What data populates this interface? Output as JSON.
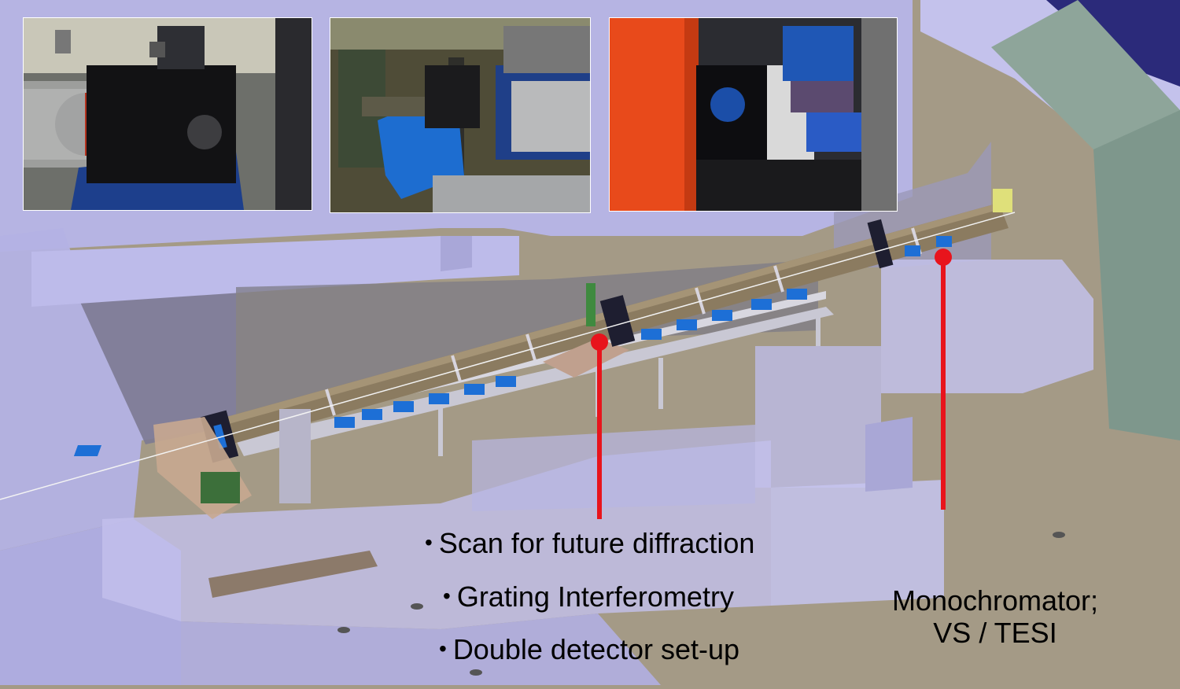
{
  "annotations": {
    "bullets": [
      "Scan for future diffraction",
      "Grating Interferometry",
      "Double detector set-up"
    ],
    "monochromator": {
      "line1": "Monochromator;",
      "line2": "VS / TESI"
    }
  },
  "photos": [
    {
      "subject": "black detector camera box on blue stand with silver tube"
    },
    {
      "subject": "blue support with detector and beam tube"
    },
    {
      "subject": "orange housing next to detector with blue motors"
    }
  ],
  "colors": {
    "floor": "#a49a86",
    "walls": "#b5b3e6",
    "dark_wall": "#7f7e99",
    "beam_tube": "#8c7c62",
    "mounts": "#1d6fd6",
    "marker": "#e8141c"
  }
}
